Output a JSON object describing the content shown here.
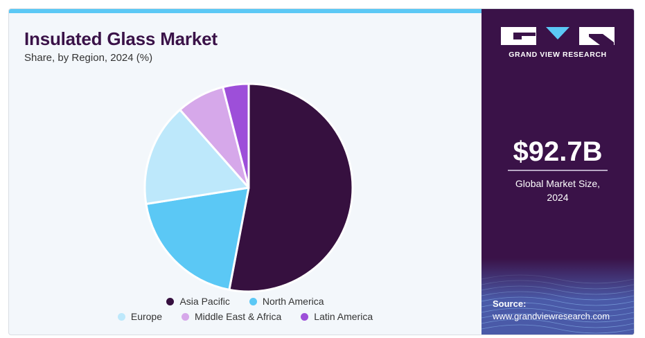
{
  "header": {
    "title": "Insulated Glass Market",
    "subtitle": "Share, by Region, 2024 (%)"
  },
  "brand": {
    "name": "GRAND VIEW RESEARCH",
    "colors": {
      "panel": "#3a1248",
      "accent": "#5bc8f5"
    }
  },
  "kpi": {
    "value": "$92.7B",
    "label_line1": "Global Market Size,",
    "label_line2": "2024"
  },
  "source": {
    "label": "Source:",
    "url": "www.grandviewresearch.com"
  },
  "chart_data": {
    "type": "pie",
    "categories": [
      "Asia Pacific",
      "North America",
      "Europe",
      "Middle East & Africa",
      "Latin America"
    ],
    "values": [
      53.0,
      19.5,
      16.0,
      7.5,
      4.0
    ],
    "colors": [
      "#36103f",
      "#5bc8f5",
      "#bde8fb",
      "#d6a8ea",
      "#9d4fd9"
    ],
    "title": "Insulated Glass Market",
    "subtitle": "Share, by Region, 2024 (%)",
    "legend_position": "bottom",
    "start_angle_deg": 0,
    "direction": "clockwise"
  }
}
